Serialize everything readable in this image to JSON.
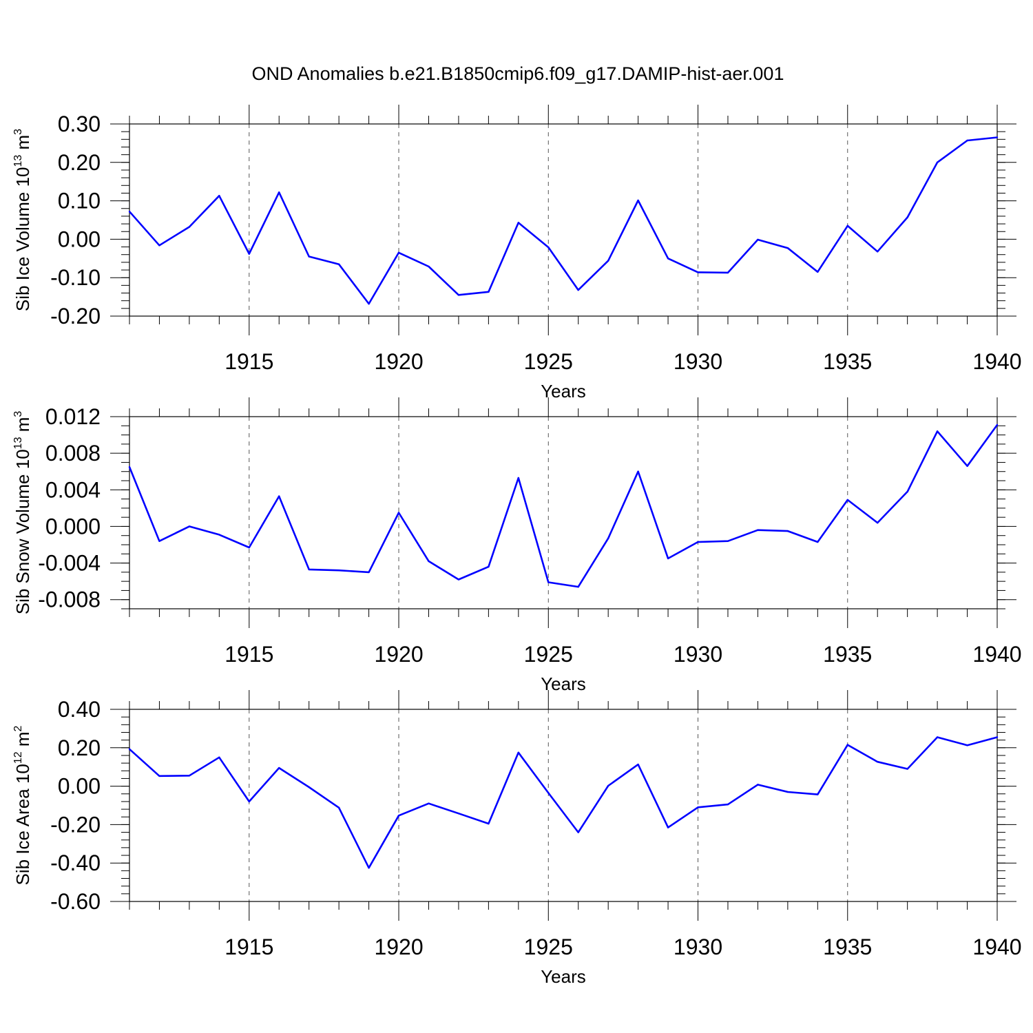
{
  "title": "OND Anomalies b.e21.B1850cmip6.f09_g17.DAMIP-hist-aer.001",
  "chart_data": [
    {
      "type": "line",
      "ylabel": "Sib Ice Volume 10",
      "ylabel_exponent": "13",
      "ylabel_unit": " m",
      "ylabel_unit_exponent": "3",
      "xlabel": "Years",
      "xlim": [
        1911,
        1940
      ],
      "ylim": [
        -0.2,
        0.3
      ],
      "x_ticks": [
        1915,
        1920,
        1925,
        1930,
        1935,
        1940
      ],
      "x_tick_labels": [
        "1915",
        "1920",
        "1925",
        "1930",
        "1935",
        "1940"
      ],
      "y_ticks": [
        -0.2,
        -0.1,
        0.0,
        0.1,
        0.2,
        0.3
      ],
      "y_tick_labels": [
        "-0.20",
        "-0.10",
        "0.00",
        "0.10",
        "0.20",
        "0.30"
      ],
      "y_minor_step": 0.02,
      "vertical_gridlines": [
        1915,
        1920,
        1925,
        1930,
        1935
      ],
      "color": "#0000ff",
      "x": [
        1911,
        1912,
        1913,
        1914,
        1915,
        1916,
        1917,
        1918,
        1919,
        1920,
        1921,
        1922,
        1923,
        1924,
        1925,
        1926,
        1927,
        1928,
        1929,
        1930,
        1931,
        1932,
        1933,
        1934,
        1935,
        1936,
        1937,
        1938,
        1939,
        1940
      ],
      "values": [
        0.072,
        -0.016,
        0.032,
        0.113,
        -0.038,
        0.122,
        -0.045,
        -0.065,
        -0.168,
        -0.035,
        -0.071,
        -0.145,
        -0.137,
        0.043,
        -0.021,
        -0.132,
        -0.056,
        0.101,
        -0.05,
        -0.086,
        -0.087,
        -0.001,
        -0.023,
        -0.085,
        0.035,
        -0.032,
        0.057,
        0.2,
        0.257,
        0.265
      ]
    },
    {
      "type": "line",
      "ylabel": "Sib Snow Volume 10",
      "ylabel_exponent": "13",
      "ylabel_unit": " m",
      "ylabel_unit_exponent": "3",
      "xlabel": "Years",
      "xlim": [
        1911,
        1940
      ],
      "ylim": [
        -0.009,
        0.012
      ],
      "x_ticks": [
        1915,
        1920,
        1925,
        1930,
        1935,
        1940
      ],
      "x_tick_labels": [
        "1915",
        "1920",
        "1925",
        "1930",
        "1935",
        "1940"
      ],
      "y_ticks": [
        -0.008,
        -0.004,
        0.0,
        0.004,
        0.008,
        0.012
      ],
      "y_tick_labels": [
        "-0.008",
        "-0.004",
        "0.000",
        "0.004",
        "0.008",
        "0.012"
      ],
      "y_minor_step": 0.001,
      "vertical_gridlines": [
        1915,
        1920,
        1925,
        1930,
        1935
      ],
      "color": "#0000ff",
      "x": [
        1911,
        1912,
        1913,
        1914,
        1915,
        1916,
        1917,
        1918,
        1919,
        1920,
        1921,
        1922,
        1923,
        1924,
        1925,
        1926,
        1927,
        1928,
        1929,
        1930,
        1931,
        1932,
        1933,
        1934,
        1935,
        1936,
        1937,
        1938,
        1939,
        1940
      ],
      "values": [
        0.0065,
        -0.0016,
        0.0,
        -0.0009,
        -0.0023,
        0.0033,
        -0.0047,
        -0.0048,
        -0.005,
        0.0015,
        -0.0038,
        -0.0058,
        -0.0044,
        0.0053,
        -0.0061,
        -0.0066,
        -0.0013,
        0.006,
        -0.0035,
        -0.0017,
        -0.0016,
        -0.0004,
        -0.0005,
        -0.0017,
        0.0029,
        0.0004,
        0.0038,
        0.0104,
        0.0066,
        0.0111
      ]
    },
    {
      "type": "line",
      "ylabel": "Sib Ice Area 10",
      "ylabel_exponent": "12",
      "ylabel_unit": " m",
      "ylabel_unit_exponent": "2",
      "xlabel": "Years",
      "xlim": [
        1911,
        1940
      ],
      "ylim": [
        -0.6,
        0.4
      ],
      "x_ticks": [
        1915,
        1920,
        1925,
        1930,
        1935,
        1940
      ],
      "x_tick_labels": [
        "1915",
        "1920",
        "1925",
        "1930",
        "1935",
        "1940"
      ],
      "y_ticks": [
        -0.6,
        -0.4,
        -0.2,
        0.0,
        0.2,
        0.4
      ],
      "y_tick_labels": [
        "-0.60",
        "-0.40",
        "-0.20",
        "0.00",
        "0.20",
        "0.40"
      ],
      "y_minor_step": 0.04,
      "vertical_gridlines": [
        1915,
        1920,
        1925,
        1930,
        1935
      ],
      "color": "#0000ff",
      "x": [
        1911,
        1912,
        1913,
        1914,
        1915,
        1916,
        1917,
        1918,
        1919,
        1920,
        1921,
        1922,
        1923,
        1924,
        1925,
        1926,
        1927,
        1928,
        1929,
        1930,
        1931,
        1932,
        1933,
        1934,
        1935,
        1936,
        1937,
        1938,
        1939,
        1940
      ],
      "values": [
        0.193,
        0.053,
        0.055,
        0.15,
        -0.08,
        0.095,
        -0.005,
        -0.112,
        -0.425,
        -0.153,
        -0.09,
        -0.142,
        -0.195,
        0.175,
        -0.035,
        -0.24,
        0.002,
        0.113,
        -0.215,
        -0.11,
        -0.095,
        0.008,
        -0.03,
        -0.043,
        0.215,
        0.127,
        0.09,
        0.255,
        0.213,
        0.255
      ]
    }
  ]
}
